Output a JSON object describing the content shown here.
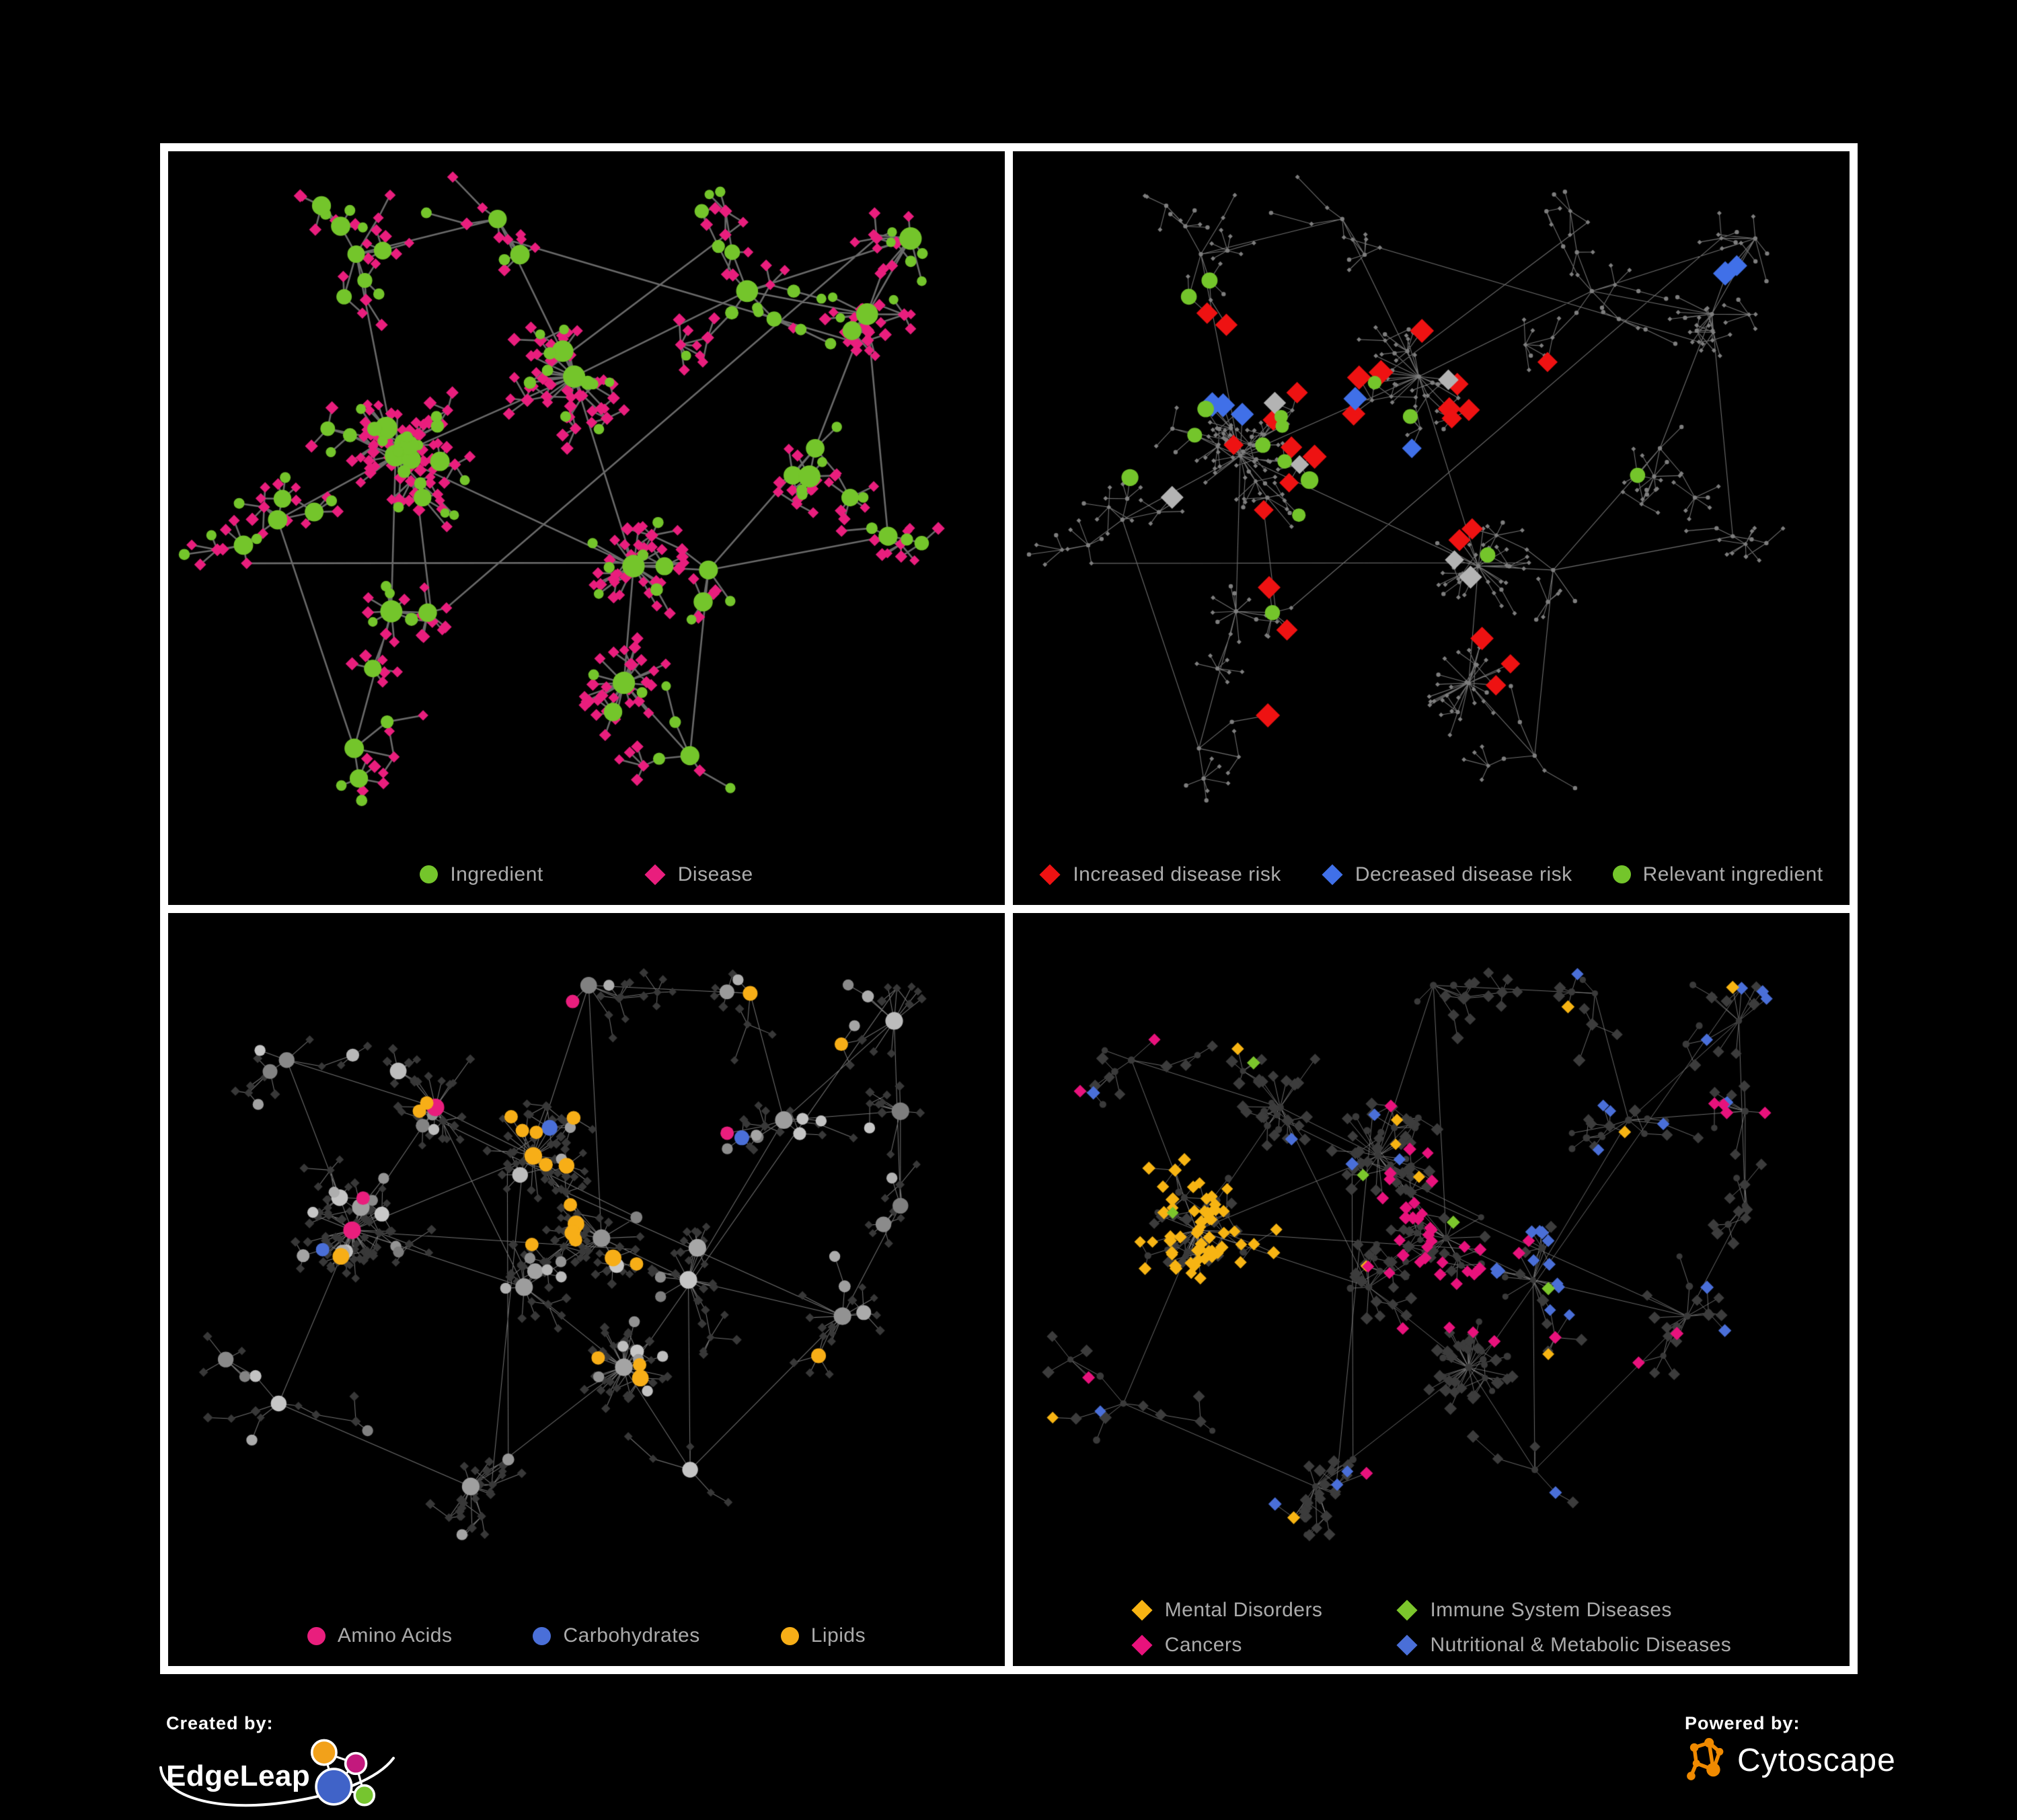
{
  "page": {
    "background": "#000000",
    "frame_color": "#FFFFFF",
    "legend_text_color": "#ABABAB"
  },
  "branding": {
    "created_by_label": "Created by:",
    "created_by_name": "EdgeLeap",
    "powered_by_label": "Powered by:",
    "powered_by_name": "Cytoscape",
    "edgeleap_colors": {
      "orange": "#F2A11A",
      "magenta": "#C3197D",
      "blue": "#4063C8",
      "green": "#76C52F"
    },
    "cytoscape_color": "#F08A00"
  },
  "chart_data": [
    {
      "type": "network",
      "id": "ingredient-disease-network",
      "layout": "A",
      "legend_layout": "row",
      "legend_gap": 150,
      "legend": [
        {
          "label": "Ingredient",
          "shape": "circle",
          "color": "#74C52B"
        },
        {
          "label": "Disease",
          "shape": "diamond",
          "color": "#E91E7D"
        }
      ],
      "style": {
        "mode": "full",
        "edge_color": "#6A6A6A",
        "edge_width": 2.6,
        "edge_alpha": 1,
        "disease_color": "#E91E7D",
        "ingredient_color": "#74C52B"
      }
    },
    {
      "type": "network",
      "id": "disease-risk-network",
      "layout": "A",
      "legend_layout": "row",
      "legend_gap": 60,
      "legend": [
        {
          "label": "Increased disease risk",
          "shape": "diamond",
          "color": "#EE1212"
        },
        {
          "label": "Decreased disease risk",
          "shape": "diamond",
          "color": "#4070E8"
        },
        {
          "label": "Relevant ingredient",
          "shape": "circle",
          "color": "#74C52B"
        }
      ],
      "style": {
        "mode": "highlight",
        "edge_color": "#828282",
        "edge_width": 1.1,
        "edge_alpha": 0.85,
        "base_color": "#7E7E7E",
        "highlights": [
          {
            "shape": "diamond",
            "color": "#EE1212",
            "size": 16,
            "anchors": [
              [
                0.245,
                0.3
              ],
              [
                0.3,
                0.262
              ],
              [
                0.33,
                0.345
              ],
              [
                0.365,
                0.3
              ],
              [
                0.3,
                0.385
              ],
              [
                0.262,
                0.425
              ],
              [
                0.33,
                0.445
              ],
              [
                0.372,
                0.425
              ],
              [
                0.352,
                0.505
              ],
              [
                0.302,
                0.522
              ],
              [
                0.412,
                0.385
              ],
              [
                0.445,
                0.312
              ],
              [
                0.492,
                0.252
              ],
              [
                0.522,
                0.372
              ],
              [
                0.562,
                0.425
              ],
              [
                0.605,
                0.425
              ],
              [
                0.472,
                0.552
              ],
              [
                0.532,
                0.552
              ],
              [
                0.312,
                0.602
              ],
              [
                0.552,
                0.302
              ],
              [
                0.672,
                0.292
              ],
              [
                0.362,
                0.752
              ],
              [
                0.392,
                0.792
              ],
              [
                0.622,
                0.752
              ],
              [
                0.652,
                0.802
              ],
              [
                0.565,
                0.695
              ]
            ]
          },
          {
            "shape": "diamond",
            "color": "#4070E8",
            "size": 16,
            "anchors": [
              [
                0.848,
                0.172
              ],
              [
                0.878,
                0.175
              ],
              [
                0.252,
                0.292
              ],
              [
                0.272,
                0.332
              ],
              [
                0.242,
                0.352
              ],
              [
                0.372,
                0.352
              ],
              [
                0.432,
                0.502
              ]
            ]
          },
          {
            "shape": "diamond",
            "color": "#B3B3B3",
            "size": 15,
            "anchors": [
              [
                0.292,
                0.312
              ],
              [
                0.402,
                0.482
              ],
              [
                0.482,
                0.522
              ],
              [
                0.552,
                0.622
              ],
              [
                0.202,
                0.502
              ],
              [
                0.522,
                0.302
              ]
            ]
          },
          {
            "shape": "circle",
            "color": "#74C52B",
            "size": 11,
            "anchors": [
              [
                0.122,
                0.272
              ],
              [
                0.182,
                0.332
              ],
              [
                0.222,
                0.382
              ],
              [
                0.282,
                0.362
              ],
              [
                0.302,
                0.422
              ],
              [
                0.332,
                0.382
              ],
              [
                0.352,
                0.442
              ],
              [
                0.382,
                0.402
              ],
              [
                0.402,
                0.442
              ],
              [
                0.442,
                0.422
              ],
              [
                0.362,
                0.552
              ],
              [
                0.302,
                0.662
              ],
              [
                0.132,
                0.482
              ],
              [
                0.672,
                0.452
              ],
              [
                0.552,
                0.582
              ],
              [
                0.102,
                0.222
              ]
            ]
          }
        ]
      }
    },
    {
      "type": "network",
      "id": "ingredient-classes-network",
      "layout": "B",
      "legend_layout": "row",
      "legend_gap": 120,
      "legend": [
        {
          "label": "Amino Acids",
          "shape": "circle",
          "color": "#E91E7D"
        },
        {
          "label": "Carbohydrates",
          "shape": "circle",
          "color": "#4A6FD8"
        },
        {
          "label": "Lipids",
          "shape": "circle",
          "color": "#F7AE17"
        }
      ],
      "style": {
        "mode": "classes",
        "target": "i",
        "seed": 77,
        "edge_color": "#8E8E8E",
        "edge_width": 1.05,
        "edge_alpha": 0.8,
        "muted_shape": "diamond",
        "muted_color": "#383838",
        "muted_size": 6,
        "other_mode": "gray_range",
        "classes": [
          {
            "label": "Lipids",
            "color": "#F7AE17",
            "base_p": 0.035,
            "hotspots": [
              [
                0.44,
                0.36,
                0.11,
                0.75
              ],
              [
                0.54,
                0.66,
                0.05,
                0.6
              ],
              [
                0.31,
                0.27,
                0.07,
                0.3
              ]
            ]
          },
          {
            "label": "Carbohydrates",
            "color": "#4A6FD8",
            "base_p": 0.012,
            "hotspots": [
              [
                0.45,
                0.37,
                0.08,
                0.3
              ]
            ]
          },
          {
            "label": "Amino Acids",
            "color": "#E91E7D",
            "base_p": 0.055,
            "hotspots": []
          }
        ]
      }
    },
    {
      "type": "network",
      "id": "disease-categories-network",
      "layout": "B",
      "legend_layout": "grid",
      "legend_gap": 110,
      "legend": [
        {
          "label": "Mental Disorders",
          "shape": "diamond",
          "color": "#F7B413"
        },
        {
          "label": "Immune System Diseases",
          "shape": "diamond",
          "color": "#7CC62C"
        },
        {
          "label": "Cancers",
          "shape": "diamond",
          "color": "#E8127C"
        },
        {
          "label": "Nutritional & Metabolic Diseases",
          "shape": "diamond",
          "color": "#4A6FD8"
        }
      ],
      "style": {
        "mode": "classes",
        "target": "d",
        "seed": 91,
        "edge_color": "#858585",
        "edge_width": 1.0,
        "edge_alpha": 0.8,
        "muted_shape": "circle",
        "muted_color": "#3A3A3A",
        "muted_size": 4.5,
        "other_mode": "flat",
        "other_color": "#3C3C3C",
        "classes": [
          {
            "label": "Mental Disorders",
            "color": "#F7B413",
            "base_p": 0.025,
            "hotspots": [
              [
                0.22,
                0.47,
                0.13,
                0.8
              ],
              [
                0.28,
                0.12,
                0.06,
                0.3
              ]
            ]
          },
          {
            "label": "Nutritional & Metabolic Diseases",
            "color": "#4A6FD8",
            "base_p": 0.05,
            "hotspots": [
              [
                0.63,
                0.53,
                0.07,
                0.75
              ],
              [
                0.87,
                0.14,
                0.1,
                0.5
              ],
              [
                0.74,
                0.3,
                0.06,
                0.35
              ],
              [
                0.2,
                0.08,
                0.06,
                0.3
              ]
            ]
          },
          {
            "label": "Cancers",
            "color": "#E8127C",
            "base_p": 0.03,
            "hotspots": [
              [
                0.52,
                0.5,
                0.1,
                0.5
              ],
              [
                0.47,
                0.4,
                0.06,
                0.3
              ],
              [
                0.88,
                0.28,
                0.05,
                0.5
              ]
            ]
          },
          {
            "label": "Immune System Diseases",
            "color": "#7CC62C",
            "base_p": 0.018,
            "hotspots": []
          }
        ]
      }
    }
  ],
  "layouts": {
    "cluster_fields": "x, y, branches, depth, step, leaf_p, burst",
    "A": {
      "seed": 11,
      "clusters": [
        [
          0.22,
          0.14,
          5,
          3,
          46,
          0.45,
          0
        ],
        [
          0.4,
          0.08,
          4,
          2,
          44,
          0.4,
          0
        ],
        [
          0.27,
          0.45,
          12,
          3,
          40,
          0.62,
          12
        ],
        [
          0.48,
          0.32,
          9,
          2,
          36,
          0.55,
          10
        ],
        [
          0.56,
          0.61,
          4,
          2,
          40,
          0.4,
          16
        ],
        [
          0.7,
          0.2,
          5,
          3,
          44,
          0.5,
          0
        ],
        [
          0.84,
          0.24,
          5,
          2,
          40,
          0.55,
          6
        ],
        [
          0.77,
          0.44,
          4,
          2,
          38,
          0.45,
          0
        ],
        [
          0.54,
          0.79,
          3,
          1,
          40,
          0.3,
          20
        ],
        [
          0.27,
          0.68,
          4,
          2,
          40,
          0.45,
          7
        ],
        [
          0.12,
          0.55,
          4,
          3,
          44,
          0.4,
          0
        ],
        [
          0.22,
          0.88,
          3,
          2,
          46,
          0.35,
          0
        ],
        [
          0.65,
          0.62,
          3,
          2,
          40,
          0.4,
          0
        ],
        [
          0.9,
          0.12,
          3,
          1,
          38,
          0.4,
          5
        ],
        [
          0.87,
          0.56,
          3,
          2,
          40,
          0.4,
          0
        ],
        [
          0.62,
          0.9,
          3,
          2,
          42,
          0.35,
          0
        ]
      ],
      "links": [
        [
          0,
          2
        ],
        [
          0,
          1
        ],
        [
          1,
          3
        ],
        [
          2,
          3
        ],
        [
          3,
          4
        ],
        [
          2,
          9
        ],
        [
          4,
          8
        ],
        [
          4,
          12
        ],
        [
          3,
          5
        ],
        [
          5,
          6
        ],
        [
          6,
          7
        ],
        [
          7,
          12
        ],
        [
          2,
          10
        ],
        [
          10,
          11
        ],
        [
          9,
          11
        ],
        [
          12,
          14
        ],
        [
          13,
          6
        ],
        [
          8,
          15
        ],
        [
          12,
          15
        ],
        [
          5,
          13
        ],
        [
          6,
          14
        ],
        [
          2,
          4
        ]
      ]
    },
    "B": {
      "seed": 29,
      "clusters": [
        [
          0.22,
          0.47,
          13,
          2,
          38,
          0.7,
          18
        ],
        [
          0.44,
          0.36,
          9,
          2,
          36,
          0.65,
          12
        ],
        [
          0.31,
          0.27,
          7,
          2,
          36,
          0.55,
          6
        ],
        [
          0.52,
          0.47,
          8,
          2,
          36,
          0.6,
          8
        ],
        [
          0.42,
          0.55,
          5,
          2,
          36,
          0.5,
          4
        ],
        [
          0.54,
          0.66,
          4,
          1,
          40,
          0.3,
          26
        ],
        [
          0.63,
          0.53,
          5,
          2,
          36,
          0.5,
          10
        ],
        [
          0.74,
          0.3,
          5,
          3,
          42,
          0.45,
          0
        ],
        [
          0.87,
          0.14,
          4,
          2,
          40,
          0.5,
          6
        ],
        [
          0.12,
          0.72,
          4,
          3,
          44,
          0.35,
          0
        ],
        [
          0.36,
          0.84,
          4,
          2,
          42,
          0.4,
          8
        ],
        [
          0.63,
          0.82,
          3,
          2,
          42,
          0.4,
          0
        ],
        [
          0.81,
          0.6,
          4,
          2,
          40,
          0.45,
          6
        ],
        [
          0.5,
          0.09,
          4,
          2,
          42,
          0.4,
          0
        ],
        [
          0.7,
          0.1,
          3,
          2,
          40,
          0.4,
          0
        ],
        [
          0.88,
          0.42,
          3,
          2,
          38,
          0.4,
          0
        ],
        [
          0.14,
          0.2,
          4,
          2,
          42,
          0.45,
          0
        ],
        [
          0.88,
          0.28,
          3,
          1,
          36,
          0.5,
          5
        ]
      ],
      "links": [
        [
          0,
          2
        ],
        [
          2,
          1
        ],
        [
          1,
          3
        ],
        [
          2,
          4
        ],
        [
          3,
          4
        ],
        [
          4,
          5
        ],
        [
          3,
          6
        ],
        [
          6,
          7
        ],
        [
          7,
          8
        ],
        [
          0,
          9
        ],
        [
          9,
          10
        ],
        [
          5,
          10
        ],
        [
          6,
          11
        ],
        [
          11,
          12
        ],
        [
          12,
          15
        ],
        [
          3,
          13
        ],
        [
          13,
          14
        ],
        [
          7,
          14
        ],
        [
          5,
          11
        ],
        [
          0,
          4
        ],
        [
          16,
          2
        ],
        [
          16,
          0
        ],
        [
          15,
          8
        ],
        [
          17,
          15
        ],
        [
          17,
          7
        ],
        [
          1,
          13
        ],
        [
          6,
          12
        ],
        [
          0,
          1
        ]
      ]
    }
  }
}
